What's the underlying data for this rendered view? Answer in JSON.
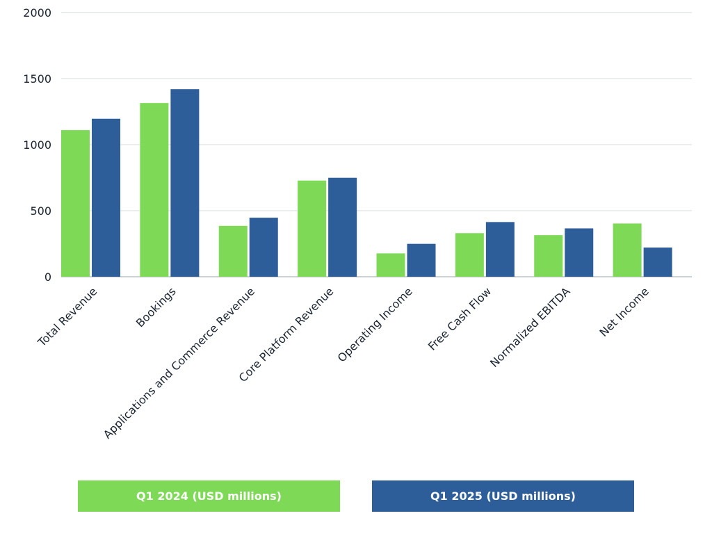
{
  "chart_data": {
    "type": "bar",
    "categories": [
      "Total Revenue",
      "Bookings",
      "Applications and Commerce Revenue",
      "Core Platform Revenue",
      "Operating Income",
      "Free Cash Flow",
      "Normalized EBITDA",
      "Net Income"
    ],
    "series": [
      {
        "name": "Q1 2024 (USD millions)",
        "color": "#7ed957",
        "values": [
          1110,
          1315,
          385,
          728,
          177,
          330,
          315,
          403
        ]
      },
      {
        "name": "Q1 2025 (USD millions)",
        "color": "#2e5e99",
        "values": [
          1196,
          1420,
          447,
          749,
          249,
          414,
          366,
          221
        ]
      }
    ],
    "title": "",
    "xlabel": "",
    "ylabel": "",
    "ylim": [
      0,
      2000
    ],
    "yticks": [
      0,
      500,
      1000,
      1500,
      2000
    ],
    "grid": true,
    "legend_position": "bottom"
  }
}
